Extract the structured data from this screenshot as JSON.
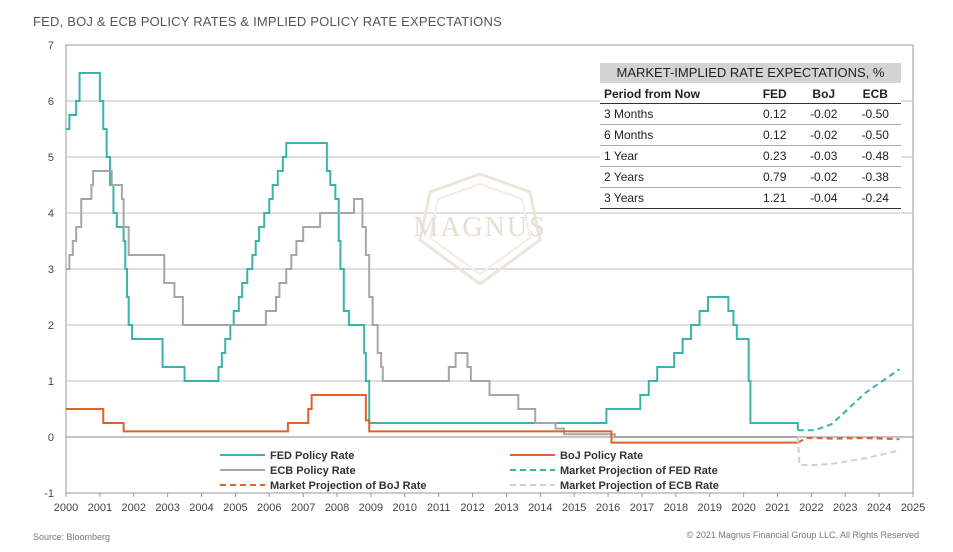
{
  "title": "FED, BOJ & ECB POLICY RATES & IMPLIED POLICY RATE EXPECTATIONS",
  "source": "Source: Bloomberg",
  "copyright": "© 2021 Magnus Financial Group LLC. All Rights Reserved",
  "watermark_text": "MAGNUS",
  "colors": {
    "fed": "#3ab3ad",
    "ecb": "#a6a6a6",
    "boj": "#e0612a",
    "ecb_proj": "#cfcfcf",
    "grid": "#bfbfbf",
    "axis": "#999999"
  },
  "table": {
    "caption": "MARKET-IMPLIED RATE EXPECTATIONS, %",
    "headers": [
      "Period from Now",
      "FED",
      "BoJ",
      "ECB"
    ],
    "rows": [
      [
        "3 Months",
        "0.12",
        "-0.02",
        "-0.50"
      ],
      [
        "6 Months",
        "0.12",
        "-0.02",
        "-0.50"
      ],
      [
        "1 Year",
        "0.23",
        "-0.03",
        "-0.48"
      ],
      [
        "2 Years",
        "0.79",
        "-0.02",
        "-0.38"
      ],
      [
        "3 Years",
        "1.21",
        "-0.04",
        "-0.24"
      ]
    ]
  },
  "chart_data": {
    "type": "line",
    "title": "FED, BOJ & ECB POLICY RATES & IMPLIED POLICY RATE EXPECTATIONS",
    "xlim": [
      2000,
      2025
    ],
    "ylim": [
      -1,
      7
    ],
    "x_ticks": [
      "2000",
      "2001",
      "2002",
      "2003",
      "2004",
      "2005",
      "2006",
      "2007",
      "2008",
      "2009",
      "2010",
      "2011",
      "2012",
      "2013",
      "2014",
      "2015",
      "2016",
      "2017",
      "2018",
      "2019",
      "2020",
      "2021",
      "2022",
      "2023",
      "2024",
      "2025"
    ],
    "y_ticks": [
      "-1",
      "0",
      "1",
      "2",
      "3",
      "4",
      "5",
      "6",
      "7"
    ],
    "grid": true,
    "legend": "bottom-center",
    "series": [
      {
        "name": "FED Policy Rate",
        "key": "fed",
        "style": "step",
        "points": [
          [
            2000.0,
            5.5
          ],
          [
            2000.1,
            5.75
          ],
          [
            2000.3,
            6.0
          ],
          [
            2000.4,
            6.5
          ],
          [
            2001.0,
            6.0
          ],
          [
            2001.1,
            5.5
          ],
          [
            2001.2,
            5.0
          ],
          [
            2001.3,
            4.5
          ],
          [
            2001.4,
            4.0
          ],
          [
            2001.5,
            3.75
          ],
          [
            2001.7,
            3.5
          ],
          [
            2001.75,
            3.0
          ],
          [
            2001.8,
            2.5
          ],
          [
            2001.85,
            2.0
          ],
          [
            2001.95,
            1.75
          ],
          [
            2002.85,
            1.25
          ],
          [
            2003.5,
            1.0
          ],
          [
            2004.5,
            1.25
          ],
          [
            2004.6,
            1.5
          ],
          [
            2004.7,
            1.75
          ],
          [
            2004.85,
            2.0
          ],
          [
            2004.95,
            2.25
          ],
          [
            2005.1,
            2.5
          ],
          [
            2005.2,
            2.75
          ],
          [
            2005.35,
            3.0
          ],
          [
            2005.5,
            3.25
          ],
          [
            2005.6,
            3.5
          ],
          [
            2005.7,
            3.75
          ],
          [
            2005.85,
            4.0
          ],
          [
            2006.0,
            4.25
          ],
          [
            2006.1,
            4.5
          ],
          [
            2006.25,
            4.75
          ],
          [
            2006.4,
            5.0
          ],
          [
            2006.5,
            5.25
          ],
          [
            2007.7,
            4.75
          ],
          [
            2007.8,
            4.5
          ],
          [
            2007.95,
            4.25
          ],
          [
            2008.05,
            3.5
          ],
          [
            2008.1,
            3.0
          ],
          [
            2008.2,
            2.25
          ],
          [
            2008.35,
            2.0
          ],
          [
            2008.8,
            1.5
          ],
          [
            2008.85,
            1.0
          ],
          [
            2008.95,
            0.25
          ],
          [
            2015.95,
            0.5
          ],
          [
            2016.95,
            0.75
          ],
          [
            2017.2,
            1.0
          ],
          [
            2017.45,
            1.25
          ],
          [
            2017.95,
            1.5
          ],
          [
            2018.2,
            1.75
          ],
          [
            2018.45,
            2.0
          ],
          [
            2018.7,
            2.25
          ],
          [
            2018.95,
            2.5
          ],
          [
            2019.55,
            2.25
          ],
          [
            2019.7,
            2.0
          ],
          [
            2019.8,
            1.75
          ],
          [
            2020.15,
            1.0
          ],
          [
            2020.2,
            0.25
          ],
          [
            2021.45,
            0.25
          ],
          [
            2021.6,
            0.12
          ]
        ]
      },
      {
        "name": "ECB Policy Rate",
        "key": "ecb",
        "style": "step",
        "points": [
          [
            2000.0,
            3.0
          ],
          [
            2000.1,
            3.25
          ],
          [
            2000.2,
            3.5
          ],
          [
            2000.3,
            3.75
          ],
          [
            2000.45,
            4.25
          ],
          [
            2000.75,
            4.5
          ],
          [
            2000.8,
            4.75
          ],
          [
            2001.35,
            4.5
          ],
          [
            2001.65,
            4.25
          ],
          [
            2001.7,
            3.75
          ],
          [
            2001.85,
            3.25
          ],
          [
            2002.9,
            2.75
          ],
          [
            2003.2,
            2.5
          ],
          [
            2003.45,
            2.0
          ],
          [
            2005.9,
            2.25
          ],
          [
            2006.2,
            2.5
          ],
          [
            2006.3,
            2.75
          ],
          [
            2006.5,
            3.0
          ],
          [
            2006.65,
            3.25
          ],
          [
            2006.8,
            3.5
          ],
          [
            2007.0,
            3.75
          ],
          [
            2007.5,
            4.0
          ],
          [
            2008.5,
            4.25
          ],
          [
            2008.75,
            3.75
          ],
          [
            2008.85,
            3.25
          ],
          [
            2008.95,
            2.5
          ],
          [
            2009.05,
            2.0
          ],
          [
            2009.2,
            1.5
          ],
          [
            2009.3,
            1.25
          ],
          [
            2009.35,
            1.0
          ],
          [
            2011.3,
            1.25
          ],
          [
            2011.5,
            1.5
          ],
          [
            2011.85,
            1.25
          ],
          [
            2011.95,
            1.0
          ],
          [
            2012.5,
            0.75
          ],
          [
            2013.35,
            0.5
          ],
          [
            2013.85,
            0.25
          ],
          [
            2014.45,
            0.15
          ],
          [
            2014.7,
            0.05
          ],
          [
            2016.2,
            0.0
          ],
          [
            2021.6,
            0.0
          ]
        ]
      },
      {
        "name": "BoJ Policy Rate",
        "key": "boj",
        "style": "step",
        "points": [
          [
            2000.0,
            0.5
          ],
          [
            2001.1,
            0.25
          ],
          [
            2001.7,
            0.1
          ],
          [
            2006.55,
            0.25
          ],
          [
            2007.15,
            0.5
          ],
          [
            2007.25,
            0.75
          ],
          [
            2008.85,
            0.3
          ],
          [
            2008.95,
            0.1
          ],
          [
            2016.1,
            -0.1
          ],
          [
            2021.6,
            -0.1
          ]
        ]
      },
      {
        "name": "Market Projection of FED Rate",
        "key": "fed",
        "style": "dash",
        "points": [
          [
            2021.6,
            0.12
          ],
          [
            2021.85,
            0.12
          ],
          [
            2022.1,
            0.12
          ],
          [
            2022.6,
            0.23
          ],
          [
            2023.6,
            0.79
          ],
          [
            2024.6,
            1.21
          ]
        ]
      },
      {
        "name": "Market Projection of BoJ Rate",
        "key": "boj",
        "style": "dash",
        "points": [
          [
            2021.6,
            -0.1
          ],
          [
            2021.85,
            -0.02
          ],
          [
            2022.1,
            -0.02
          ],
          [
            2022.6,
            -0.03
          ],
          [
            2023.6,
            -0.02
          ],
          [
            2024.6,
            -0.04
          ]
        ]
      },
      {
        "name": "Market Projection of ECB Rate",
        "key": "ecb_proj",
        "style": "dash",
        "points": [
          [
            2021.6,
            0.0
          ],
          [
            2021.65,
            -0.5
          ],
          [
            2022.1,
            -0.5
          ],
          [
            2022.6,
            -0.48
          ],
          [
            2023.6,
            -0.38
          ],
          [
            2024.6,
            -0.24
          ]
        ]
      }
    ]
  },
  "legend_items": [
    {
      "label": "FED Policy Rate",
      "key": "fed",
      "dash": false
    },
    {
      "label": "BoJ Policy Rate",
      "key": "boj",
      "dash": false
    },
    {
      "label": "ECB Policy Rate",
      "key": "ecb",
      "dash": false
    },
    {
      "label": "Market Projection of FED Rate",
      "key": "fed",
      "dash": true
    },
    {
      "label": "Market Projection of BoJ Rate",
      "key": "boj",
      "dash": true
    },
    {
      "label": "Market Projection of ECB Rate",
      "key": "ecb_proj",
      "dash": true
    }
  ]
}
